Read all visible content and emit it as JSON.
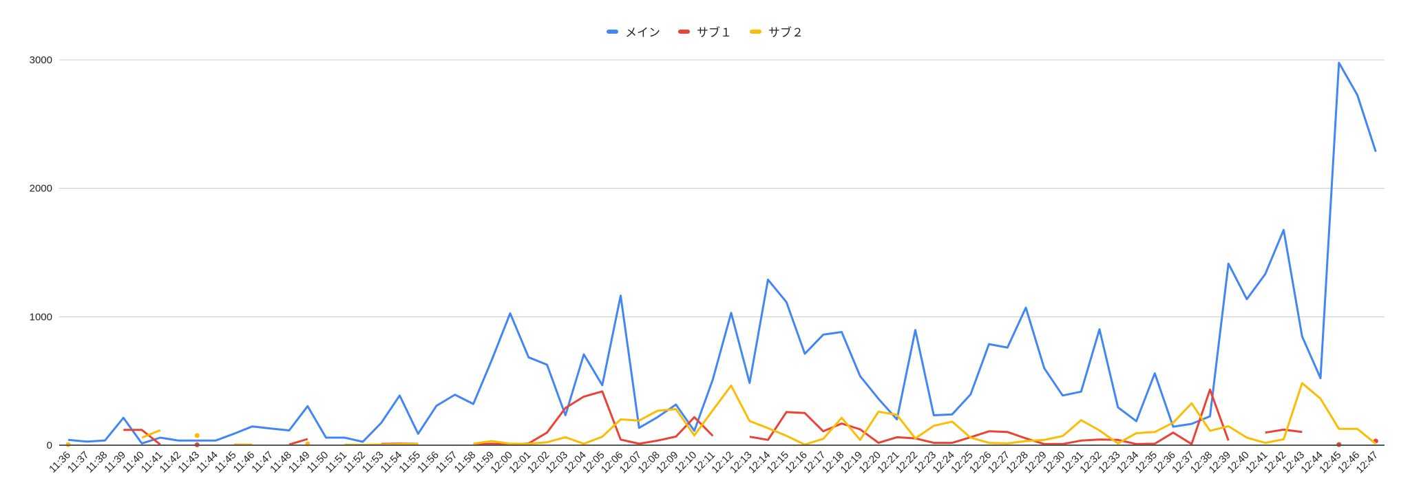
{
  "chart_data": {
    "type": "line",
    "title": "",
    "xlabel": "",
    "ylabel": "",
    "ylim": [
      0,
      3000
    ],
    "yticks": [
      0,
      1000,
      2000,
      3000
    ],
    "grid": true,
    "legend_position": "top",
    "categories": [
      "11:36",
      "11:37",
      "11:38",
      "11:39",
      "11:40",
      "11:41",
      "11:42",
      "11:43",
      "11:44",
      "11:45",
      "11:46",
      "11:47",
      "11:48",
      "11:49",
      "11:50",
      "11:51",
      "11:52",
      "11:53",
      "11:54",
      "11:55",
      "11:56",
      "11:57",
      "11:58",
      "11:59",
      "12:00",
      "12:01",
      "12:02",
      "12:03",
      "12:04",
      "12:05",
      "12:06",
      "12:07",
      "12:08",
      "12:09",
      "12:10",
      "12:11",
      "12:12",
      "12:13",
      "12:14",
      "12:15",
      "12:16",
      "12:17",
      "12:18",
      "12:19",
      "12:20",
      "12:21",
      "12:22",
      "12:23",
      "12:24",
      "12:25",
      "12:26",
      "12:27",
      "12:28",
      "12:29",
      "12:30",
      "12:31",
      "12:32",
      "12:33",
      "12:34",
      "12:35",
      "12:36",
      "12:37",
      "12:38",
      "12:39",
      "12:40",
      "12:41",
      "12:42",
      "12:43",
      "12:44",
      "12:45",
      "12:46",
      "12:47"
    ],
    "series": [
      {
        "name": "メイン",
        "color": "#4285F4",
        "values": [
          41,
          28,
          37,
          213,
          14,
          59,
          36,
          36,
          36,
          89,
          146,
          130,
          115,
          304,
          59,
          59,
          27,
          174,
          387,
          89,
          307,
          393,
          321,
          663,
          1027,
          684,
          627,
          233,
          707,
          467,
          1164,
          135,
          218,
          316,
          112,
          511,
          1030,
          485,
          1289,
          1114,
          712,
          861,
          881,
          538,
          361,
          201,
          897,
          233,
          240,
          396,
          787,
          760,
          1071,
          599,
          387,
          417,
          902,
          295,
          187,
          560,
          144,
          166,
          225,
          1414,
          1137,
          1333,
          1676,
          847,
          522,
          2977,
          2727,
          2285
        ]
      },
      {
        "name": "サブ１",
        "color": "#EA4335",
        "values": [
          null,
          null,
          null,
          119,
          119,
          5,
          null,
          3,
          null,
          null,
          null,
          null,
          5,
          48,
          null,
          null,
          null,
          10,
          12,
          10,
          null,
          null,
          5,
          11,
          5,
          14,
          98,
          290,
          378,
          419,
          44,
          11,
          36,
          67,
          218,
          73,
          null,
          66,
          41,
          258,
          250,
          108,
          169,
          124,
          18,
          62,
          53,
          18,
          18,
          62,
          108,
          103,
          53,
          9,
          9,
          36,
          44,
          41,
          9,
          11,
          98,
          9,
          433,
          36,
          null,
          98,
          121,
          103,
          null,
          5,
          null,
          32
        ]
      },
      {
        "name": "サブ２",
        "color": "#FBBC04",
        "values": [
          5,
          null,
          null,
          null,
          59,
          117,
          null,
          75,
          null,
          5,
          5,
          null,
          null,
          10,
          null,
          3,
          3,
          5,
          8,
          8,
          null,
          null,
          11,
          32,
          11,
          11,
          23,
          62,
          11,
          66,
          201,
          192,
          268,
          281,
          76,
          272,
          464,
          188,
          133,
          73,
          5,
          50,
          213,
          41,
          261,
          236,
          53,
          151,
          183,
          59,
          18,
          14,
          32,
          41,
          71,
          195,
          115,
          14,
          94,
          103,
          175,
          326,
          112,
          148,
          59,
          18,
          46,
          483,
          362,
          127,
          127,
          11
        ]
      }
    ]
  },
  "legend": {
    "items": [
      {
        "label": "メイン",
        "color": "#4285F4"
      },
      {
        "label": "サブ１",
        "color": "#EA4335"
      },
      {
        "label": "サブ２",
        "color": "#FBBC04"
      }
    ]
  }
}
